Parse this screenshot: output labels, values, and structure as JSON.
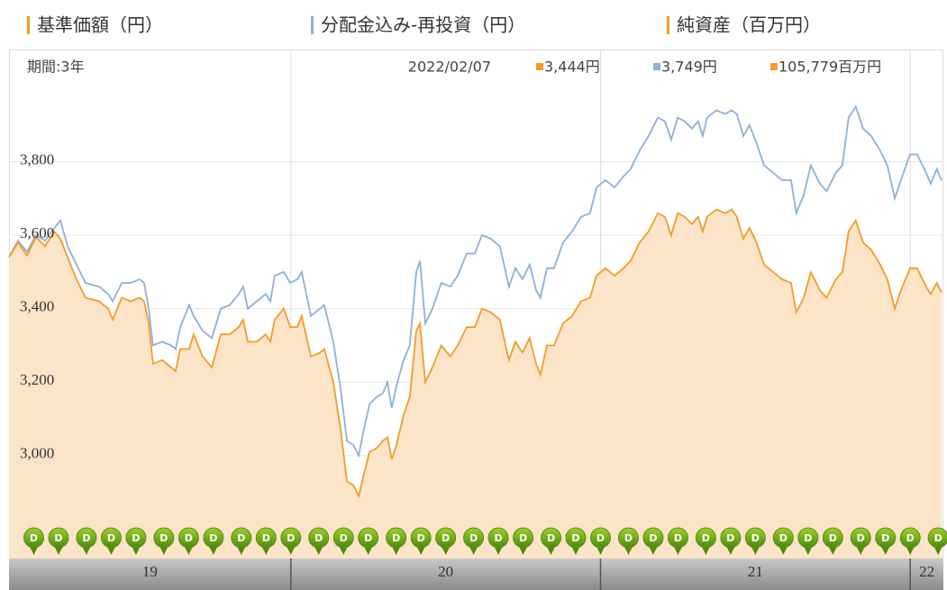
{
  "chart_data": {
    "type": "line",
    "period_label": "期間:3年",
    "current": {
      "date": "2022/02/07",
      "labels": [
        "3,444円",
        "3,749円",
        "105,779百万円"
      ]
    },
    "net_assets": {
      "name": "純資産（百万円）",
      "color": "#f39c28"
    },
    "x": [
      2019.09,
      2019.119,
      2019.148,
      2019.177,
      2019.206,
      2019.236,
      2019.256,
      2019.279,
      2019.308,
      2019.337,
      2019.381,
      2019.41,
      2019.425,
      2019.454,
      2019.483,
      2019.512,
      2019.526,
      2019.541,
      2019.555,
      2019.585,
      2019.614,
      2019.628,
      2019.643,
      2019.672,
      2019.686,
      2019.715,
      2019.745,
      2019.774,
      2019.803,
      2019.832,
      2019.846,
      2019.861,
      2019.89,
      2019.919,
      2019.934,
      2019.948,
      2019.977,
      2019.998,
      2020.021,
      2020.035,
      2020.065,
      2020.094,
      2020.108,
      2020.137,
      2020.161,
      2020.181,
      2020.201,
      2020.219,
      2020.233,
      2020.254,
      2020.277,
      2020.297,
      2020.312,
      2020.326,
      2020.341,
      2020.364,
      2020.384,
      2020.405,
      2020.417,
      2020.434,
      2020.457,
      2020.486,
      2020.515,
      2020.539,
      2020.568,
      2020.594,
      2020.617,
      2020.646,
      2020.675,
      2020.704,
      2020.725,
      2020.748,
      2020.771,
      2020.792,
      2020.806,
      2020.827,
      2020.85,
      2020.879,
      2020.908,
      2020.937,
      2020.966,
      2020.987,
      2021.016,
      2021.045,
      2021.074,
      2021.097,
      2021.126,
      2021.155,
      2021.185,
      2021.208,
      2021.228,
      2021.249,
      2021.272,
      2021.295,
      2021.315,
      2021.33,
      2021.344,
      2021.374,
      2021.403,
      2021.423,
      2021.44,
      2021.461,
      2021.481,
      2021.504,
      2021.528,
      2021.557,
      2021.586,
      2021.615,
      2021.632,
      2021.656,
      2021.679,
      2021.708,
      2021.73,
      2021.76,
      2021.781,
      2021.801,
      2021.824,
      2021.848,
      2021.874,
      2021.903,
      2021.926,
      2021.95,
      2021.97,
      2021.999,
      2022.022,
      2022.051,
      2022.066,
      2022.086,
      2022.101
    ],
    "series": [
      {
        "name": "基準価額（円）",
        "color": "#f39c28",
        "fill": "#fce4c8",
        "values": [
          3540,
          3580,
          3545,
          3595,
          3570,
          3610,
          3590,
          3540,
          3480,
          3430,
          3420,
          3400,
          3370,
          3430,
          3420,
          3430,
          3420,
          3360,
          3250,
          3260,
          3240,
          3230,
          3290,
          3290,
          3330,
          3270,
          3240,
          3330,
          3330,
          3350,
          3370,
          3310,
          3310,
          3330,
          3310,
          3370,
          3400,
          3350,
          3350,
          3380,
          3270,
          3280,
          3290,
          3200,
          3070,
          2930,
          2920,
          2890,
          2940,
          3010,
          3020,
          3040,
          3050,
          2990,
          3030,
          3110,
          3160,
          3340,
          3360,
          3200,
          3240,
          3300,
          3270,
          3300,
          3350,
          3350,
          3400,
          3390,
          3370,
          3260,
          3310,
          3280,
          3320,
          3250,
          3220,
          3300,
          3300,
          3360,
          3380,
          3420,
          3430,
          3490,
          3510,
          3490,
          3510,
          3530,
          3580,
          3610,
          3660,
          3650,
          3600,
          3660,
          3650,
          3630,
          3650,
          3610,
          3650,
          3670,
          3660,
          3670,
          3650,
          3590,
          3620,
          3580,
          3520,
          3500,
          3480,
          3470,
          3390,
          3430,
          3500,
          3450,
          3430,
          3480,
          3500,
          3610,
          3640,
          3580,
          3560,
          3520,
          3480,
          3400,
          3450,
          3510,
          3510,
          3460,
          3440,
          3470,
          3444
        ]
      },
      {
        "name": "分配金込み-再投資（円）",
        "color": "#8fb0d6",
        "values": [
          3540,
          3585,
          3555,
          3600,
          3585,
          3620,
          3640,
          3570,
          3520,
          3470,
          3460,
          3440,
          3420,
          3470,
          3470,
          3480,
          3470,
          3400,
          3300,
          3310,
          3300,
          3290,
          3350,
          3410,
          3380,
          3340,
          3320,
          3400,
          3410,
          3440,
          3460,
          3400,
          3420,
          3440,
          3420,
          3490,
          3500,
          3470,
          3480,
          3500,
          3380,
          3400,
          3410,
          3310,
          3180,
          3040,
          3030,
          3000,
          3060,
          3140,
          3160,
          3170,
          3200,
          3130,
          3190,
          3260,
          3300,
          3500,
          3530,
          3360,
          3400,
          3470,
          3460,
          3490,
          3550,
          3550,
          3600,
          3590,
          3570,
          3460,
          3510,
          3480,
          3520,
          3450,
          3430,
          3510,
          3510,
          3580,
          3610,
          3650,
          3660,
          3730,
          3750,
          3730,
          3760,
          3780,
          3830,
          3870,
          3920,
          3910,
          3860,
          3920,
          3910,
          3890,
          3910,
          3870,
          3920,
          3940,
          3930,
          3940,
          3930,
          3870,
          3900,
          3850,
          3790,
          3770,
          3750,
          3750,
          3660,
          3710,
          3790,
          3740,
          3720,
          3770,
          3790,
          3920,
          3950,
          3890,
          3870,
          3830,
          3790,
          3700,
          3750,
          3820,
          3820,
          3770,
          3740,
          3780,
          3749
        ]
      }
    ],
    "dividends": {
      "label": "D",
      "x": [
        2019.17,
        2019.25,
        2019.34,
        2019.42,
        2019.5,
        2019.59,
        2019.67,
        2019.75,
        2019.84,
        2019.92,
        2020.0,
        2020.09,
        2020.17,
        2020.25,
        2020.34,
        2020.42,
        2020.5,
        2020.59,
        2020.67,
        2020.75,
        2020.84,
        2020.92,
        2021.0,
        2021.09,
        2021.17,
        2021.25,
        2021.34,
        2021.42,
        2021.5,
        2021.59,
        2021.67,
        2021.75,
        2021.84,
        2021.92,
        2022.0,
        2022.09
      ]
    },
    "xlim": [
      2019.09,
      2022.107
    ],
    "xticks": [
      {
        "value": 2019,
        "label": "19"
      },
      {
        "value": 2020,
        "label": "20"
      },
      {
        "value": 2021,
        "label": "21"
      },
      {
        "value": 2022,
        "label": "22"
      }
    ],
    "ylim": [
      2720,
      4000
    ],
    "yticks": [
      {
        "value": 3000,
        "label": "3,000"
      },
      {
        "value": 3200,
        "label": "3,200"
      },
      {
        "value": 3400,
        "label": "3,400"
      },
      {
        "value": 3600,
        "label": "3,600"
      },
      {
        "value": 3800,
        "label": "3,800"
      }
    ],
    "grid": true
  }
}
